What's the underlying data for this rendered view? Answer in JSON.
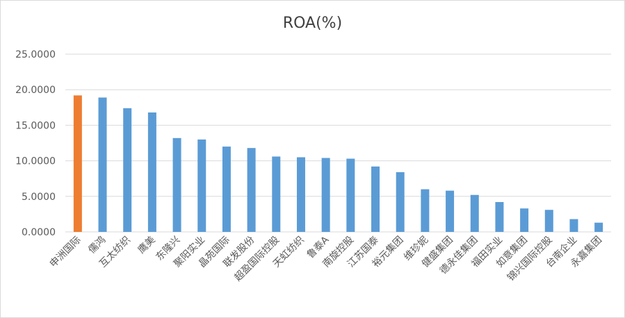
{
  "chart_data": {
    "type": "bar",
    "title": "ROA(%)",
    "xlabel": "",
    "ylabel": "",
    "ylim": [
      0,
      25
    ],
    "yticks": [
      "0.0000",
      "5.0000",
      "10.0000",
      "15.0000",
      "20.0000",
      "25.0000"
    ],
    "grid": true,
    "categories": [
      "申洲国际",
      "儒鸿",
      "互太纺织",
      "鹰美",
      "东隆兴",
      "聚阳实业",
      "晶苑国际",
      "联发股份",
      "超盈国际控股",
      "天虹纺织",
      "鲁泰A",
      "南旋控股",
      "江苏国泰",
      "裕元集团",
      "维珍妮",
      "健盛集团",
      "德永佳集团",
      "福田实业",
      "如意集团",
      "锦兴国际控股",
      "台南企业",
      "永嘉集团"
    ],
    "values": [
      19.2,
      18.9,
      17.4,
      16.8,
      13.2,
      13.0,
      12.0,
      11.8,
      10.6,
      10.5,
      10.4,
      10.3,
      9.2,
      8.4,
      6.0,
      5.8,
      5.2,
      4.2,
      3.3,
      3.1,
      1.8,
      1.3
    ],
    "colors": {
      "highlight": "#ed7d31",
      "default": "#5b9bd5",
      "grid": "#d9d9d9"
    }
  }
}
